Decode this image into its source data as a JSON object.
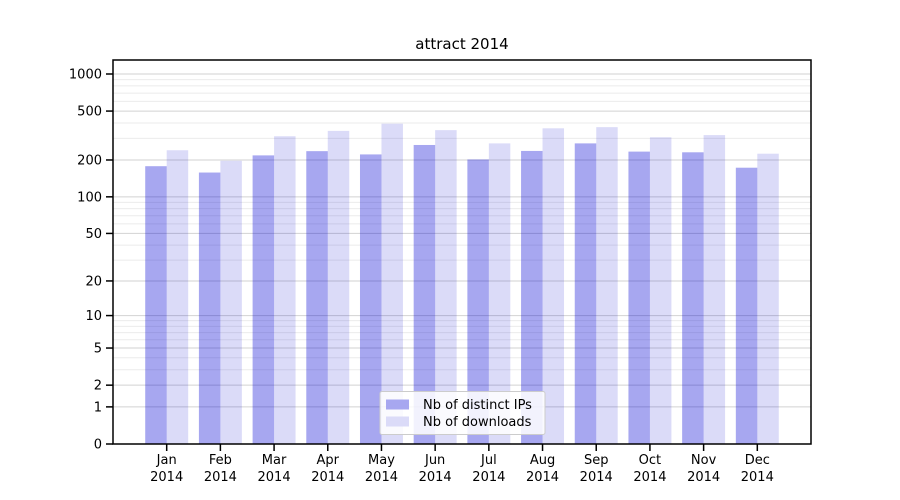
{
  "chart_data": {
    "type": "bar",
    "title": "attract 2014",
    "categories": [
      "Jan 2014",
      "Feb 2014",
      "Mar 2014",
      "Apr 2014",
      "May 2014",
      "Jun 2014",
      "Jul 2014",
      "Aug 2014",
      "Sep 2014",
      "Oct 2014",
      "Nov 2014",
      "Dec 2014"
    ],
    "series": [
      {
        "name": "Nb of distinct IPs",
        "color_solid": "#a7a7f0",
        "color_fill": "rgba(4,4,212,0.35)",
        "values": [
          178,
          158,
          218,
          236,
          222,
          265,
          202,
          237,
          273,
          234,
          231,
          173
        ]
      },
      {
        "name": "Nb of downloads",
        "color_solid": "#dbdbf8",
        "color_fill": "rgba(15,15,208,0.15)",
        "values": [
          240,
          197,
          312,
          345,
          395,
          350,
          273,
          362,
          370,
          306,
          319,
          225
        ]
      }
    ],
    "yscale": "log1p",
    "y_ticks": [
      0,
      1,
      2,
      5,
      10,
      20,
      50,
      100,
      200,
      500,
      1000
    ],
    "y_minor_gridlines": [
      3,
      4,
      6,
      7,
      8,
      9,
      30,
      40,
      60,
      70,
      80,
      90,
      300,
      400,
      600,
      700,
      800,
      900
    ],
    "ylim": [
      0,
      1300
    ],
    "grid": true,
    "legend_position": "lower center",
    "colors": {
      "major_grid": "#d2d2d2",
      "minor_grid": "#ebebeb",
      "axis": "#000000",
      "text": "#000000",
      "legend_border": "#cccccc",
      "legend_bg": "rgba(255,255,255,0.85)",
      "plot_bg": "#ffffff"
    }
  }
}
